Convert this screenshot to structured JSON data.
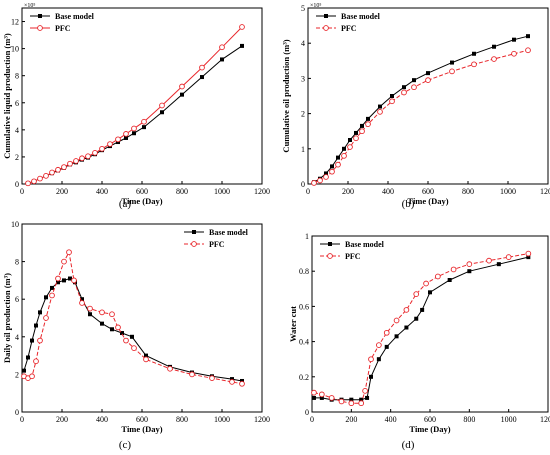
{
  "figure": {
    "panels": [
      "(a)",
      "(b)",
      "(c)",
      "(d)"
    ]
  },
  "colors": {
    "base_model": "#000000",
    "pfc": "#e8262b"
  },
  "chart_data": [
    {
      "type": "line",
      "panel_label": "(a)",
      "xlabel": "Time (Day)",
      "ylabel": "Cumulative liquid production (m³)",
      "y_multiplier": "×10⁵",
      "xlim": [
        0,
        1200
      ],
      "ylim": [
        0,
        13
      ],
      "xticks": [
        0,
        200,
        400,
        600,
        800,
        1000,
        1200
      ],
      "yticks": [
        0,
        2,
        4,
        6,
        8,
        10,
        12
      ],
      "legend": "top-left",
      "series": [
        {
          "name": "Base model",
          "style": "solid",
          "marker": "square",
          "x": [
            30,
            60,
            90,
            120,
            150,
            180,
            210,
            240,
            270,
            300,
            330,
            365,
            400,
            440,
            480,
            520,
            560,
            610,
            700,
            800,
            900,
            1000,
            1100
          ],
          "y": [
            0.05,
            0.2,
            0.4,
            0.6,
            0.8,
            1.0,
            1.2,
            1.45,
            1.6,
            1.8,
            1.95,
            2.2,
            2.5,
            2.8,
            3.1,
            3.4,
            3.75,
            4.2,
            5.3,
            6.6,
            7.9,
            9.2,
            10.2
          ]
        },
        {
          "name": "PFC",
          "style": "solid",
          "marker": "circle",
          "x": [
            30,
            60,
            90,
            120,
            150,
            180,
            210,
            240,
            270,
            300,
            330,
            365,
            400,
            440,
            480,
            520,
            560,
            610,
            700,
            800,
            900,
            1000,
            1100
          ],
          "y": [
            0.05,
            0.2,
            0.4,
            0.6,
            0.85,
            1.05,
            1.25,
            1.5,
            1.7,
            1.9,
            2.05,
            2.3,
            2.6,
            2.95,
            3.3,
            3.7,
            4.1,
            4.6,
            5.8,
            7.2,
            8.6,
            10.1,
            11.6
          ]
        }
      ]
    },
    {
      "type": "line",
      "panel_label": "(b)",
      "xlabel": "Time (Day)",
      "ylabel": "Cumulative oil production (m³)",
      "y_multiplier": "×10⁵",
      "xlim": [
        0,
        1200
      ],
      "ylim": [
        0,
        5
      ],
      "xticks": [
        0,
        200,
        400,
        600,
        800,
        1000,
        1200
      ],
      "yticks": [
        0,
        1,
        2,
        3,
        4,
        5
      ],
      "legend": "top-left",
      "series": [
        {
          "name": "Base model",
          "style": "solid",
          "marker": "square",
          "x": [
            30,
            60,
            90,
            120,
            150,
            180,
            210,
            240,
            270,
            300,
            360,
            420,
            480,
            530,
            600,
            720,
            830,
            930,
            1030,
            1100
          ],
          "y": [
            0.05,
            0.15,
            0.3,
            0.5,
            0.75,
            1.0,
            1.25,
            1.45,
            1.65,
            1.85,
            2.2,
            2.5,
            2.75,
            2.95,
            3.15,
            3.45,
            3.7,
            3.9,
            4.1,
            4.2
          ]
        },
        {
          "name": "PFC",
          "style": "dashed",
          "marker": "circle",
          "x": [
            30,
            60,
            90,
            120,
            150,
            180,
            210,
            240,
            270,
            300,
            360,
            420,
            480,
            530,
            600,
            720,
            830,
            930,
            1030,
            1100
          ],
          "y": [
            0.03,
            0.1,
            0.2,
            0.35,
            0.55,
            0.8,
            1.05,
            1.3,
            1.5,
            1.7,
            2.05,
            2.35,
            2.6,
            2.75,
            2.95,
            3.2,
            3.4,
            3.55,
            3.7,
            3.8
          ]
        }
      ]
    },
    {
      "type": "line",
      "panel_label": "(c)",
      "xlabel": "Time (Day)",
      "ylabel": "Daily oil production (m³)",
      "xlim": [
        0,
        1200
      ],
      "ylim": [
        0,
        10
      ],
      "xticks": [
        0,
        200,
        400,
        600,
        800,
        1000,
        1200
      ],
      "yticks": [
        0,
        2,
        4,
        6,
        8,
        10
      ],
      "legend": "top-right",
      "series": [
        {
          "name": "Base model",
          "style": "solid",
          "marker": "square",
          "x": [
            10,
            30,
            50,
            70,
            90,
            120,
            150,
            180,
            210,
            240,
            265,
            300,
            340,
            400,
            450,
            500,
            550,
            620,
            740,
            850,
            950,
            1050,
            1100
          ],
          "y": [
            2.2,
            2.9,
            3.8,
            4.6,
            5.3,
            6.1,
            6.6,
            6.9,
            7.0,
            7.1,
            6.9,
            6.0,
            5.2,
            4.7,
            4.4,
            4.2,
            4.0,
            3.0,
            2.4,
            2.1,
            1.9,
            1.75,
            1.65
          ]
        },
        {
          "name": "PFC",
          "style": "dashed",
          "marker": "circle",
          "x": [
            10,
            30,
            50,
            70,
            90,
            120,
            150,
            180,
            210,
            235,
            260,
            300,
            340,
            400,
            450,
            480,
            520,
            560,
            620,
            740,
            850,
            950,
            1050,
            1100
          ],
          "y": [
            1.9,
            1.8,
            1.9,
            2.7,
            3.8,
            5.0,
            6.2,
            7.1,
            8.0,
            8.5,
            7.0,
            5.8,
            5.5,
            5.3,
            5.2,
            4.5,
            3.8,
            3.4,
            2.8,
            2.3,
            2.0,
            1.8,
            1.6,
            1.5
          ]
        }
      ]
    },
    {
      "type": "line",
      "panel_label": "(d)",
      "xlabel": "Time (Day)",
      "ylabel": "Water cut",
      "xlim": [
        0,
        1200
      ],
      "ylim": [
        0,
        1.0
      ],
      "xticks": [
        0,
        200,
        400,
        600,
        800,
        1000,
        1200
      ],
      "yticks": [
        0.0,
        0.2,
        0.4,
        0.6,
        0.8,
        1.0
      ],
      "legend": "top-left",
      "series": [
        {
          "name": "Base model",
          "style": "solid",
          "marker": "square",
          "x": [
            10,
            50,
            100,
            150,
            200,
            250,
            280,
            300,
            340,
            380,
            430,
            480,
            530,
            560,
            600,
            700,
            800,
            950,
            1100
          ],
          "y": [
            0.08,
            0.08,
            0.07,
            0.07,
            0.07,
            0.07,
            0.08,
            0.2,
            0.3,
            0.37,
            0.43,
            0.48,
            0.53,
            0.58,
            0.68,
            0.75,
            0.8,
            0.84,
            0.88
          ]
        },
        {
          "name": "PFC",
          "style": "dashed",
          "marker": "circle",
          "x": [
            10,
            50,
            100,
            150,
            200,
            250,
            270,
            300,
            340,
            380,
            430,
            480,
            530,
            580,
            640,
            720,
            800,
            900,
            1000,
            1100
          ],
          "y": [
            0.11,
            0.1,
            0.08,
            0.06,
            0.05,
            0.05,
            0.12,
            0.3,
            0.38,
            0.45,
            0.52,
            0.58,
            0.67,
            0.73,
            0.77,
            0.81,
            0.84,
            0.86,
            0.88,
            0.9
          ]
        }
      ]
    }
  ]
}
